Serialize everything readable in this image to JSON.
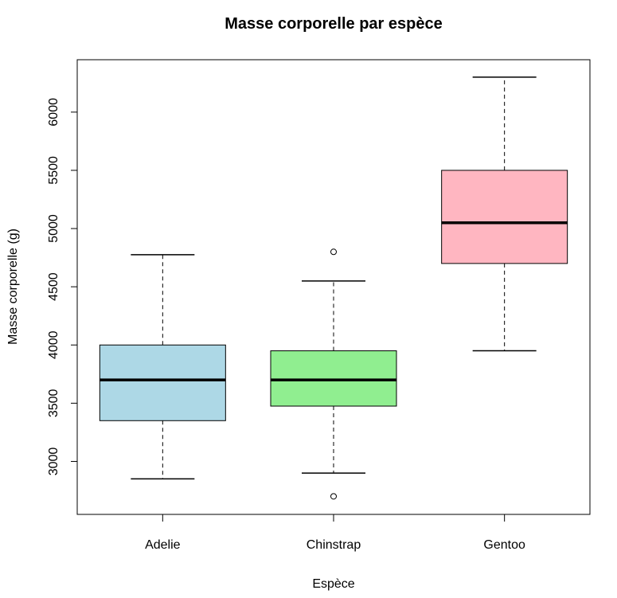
{
  "chart_data": {
    "type": "boxplot",
    "title": "Masse corporelle par espèce",
    "xlabel": "Espèce",
    "ylabel": "Masse corporelle (g)",
    "ylim": [
      2545,
      6450
    ],
    "yticks": [
      3000,
      3500,
      4000,
      4500,
      5000,
      5500,
      6000
    ],
    "categories": [
      "Adelie",
      "Chinstrap",
      "Gentoo"
    ],
    "boxes": [
      {
        "name": "Adelie",
        "color": "#ADD8E6",
        "min": 2850,
        "q1": 3350,
        "median": 3700,
        "q3": 4000,
        "max": 4775,
        "outliers": []
      },
      {
        "name": "Chinstrap",
        "color": "#90EE90",
        "min": 2900,
        "q1": 3475,
        "median": 3700,
        "q3": 3950,
        "max": 4550,
        "outliers": [
          2700,
          4800
        ]
      },
      {
        "name": "Gentoo",
        "color": "#FFB6C1",
        "min": 3950,
        "q1": 4700,
        "median": 5050,
        "q3": 5500,
        "max": 6300,
        "outliers": []
      }
    ],
    "grid": false,
    "legend": "none"
  }
}
